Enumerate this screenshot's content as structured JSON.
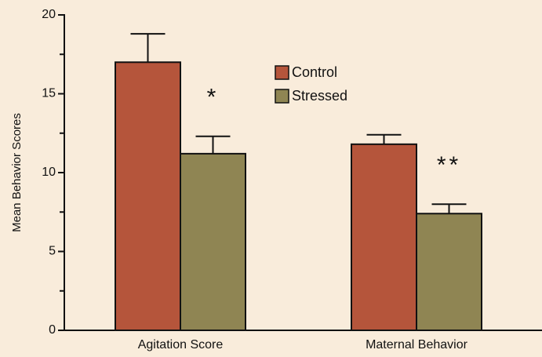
{
  "chart_data": {
    "type": "bar",
    "ylabel": "Mean Behavior Scores",
    "categories": [
      "Agitation Score",
      "Maternal Behavior"
    ],
    "series": [
      {
        "name": "Control",
        "color": "#b5553b",
        "values": [
          17.0,
          11.8
        ],
        "errors": [
          1.8,
          0.6
        ]
      },
      {
        "name": "Stressed",
        "color": "#8f8553",
        "values": [
          11.2,
          7.4
        ],
        "errors": [
          1.1,
          0.6
        ]
      }
    ],
    "annotations": [
      "*",
      "**"
    ],
    "ylim": [
      0,
      20
    ],
    "yticks": [
      0,
      5,
      10,
      15,
      20
    ],
    "minor_yticks": [
      2.5,
      7.5,
      12.5,
      17.5
    ],
    "legend": "upper center"
  }
}
